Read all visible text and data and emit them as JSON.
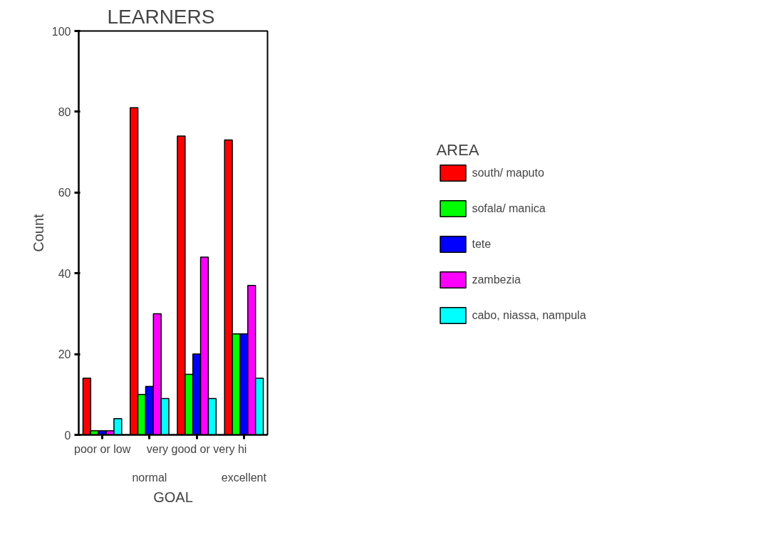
{
  "chart_data": {
    "type": "bar",
    "title": "LEARNERS",
    "xlabel": "GOAL",
    "ylabel": "Count",
    "legend_title": "AREA",
    "legend": "right",
    "grid": false,
    "categories": [
      "poor or low",
      "normal",
      "very good or very hi",
      "excellent"
    ],
    "ylim": [
      0,
      100
    ],
    "yticks": [
      0,
      20,
      40,
      60,
      80,
      100
    ],
    "series": [
      {
        "name": "south/ maputo",
        "color": "#ff0000",
        "values": [
          14,
          81,
          74,
          73
        ]
      },
      {
        "name": "sofala/ manica",
        "color": "#00ff00",
        "values": [
          1,
          10,
          15,
          25
        ]
      },
      {
        "name": "tete",
        "color": "#0000ff",
        "values": [
          1,
          12,
          20,
          25
        ]
      },
      {
        "name": "zambezia",
        "color": "#ff00ff",
        "values": [
          1,
          30,
          44,
          37
        ]
      },
      {
        "name": "cabo, niassa, nampula",
        "color": "#00ffff",
        "values": [
          4,
          9,
          9,
          14
        ]
      }
    ]
  }
}
